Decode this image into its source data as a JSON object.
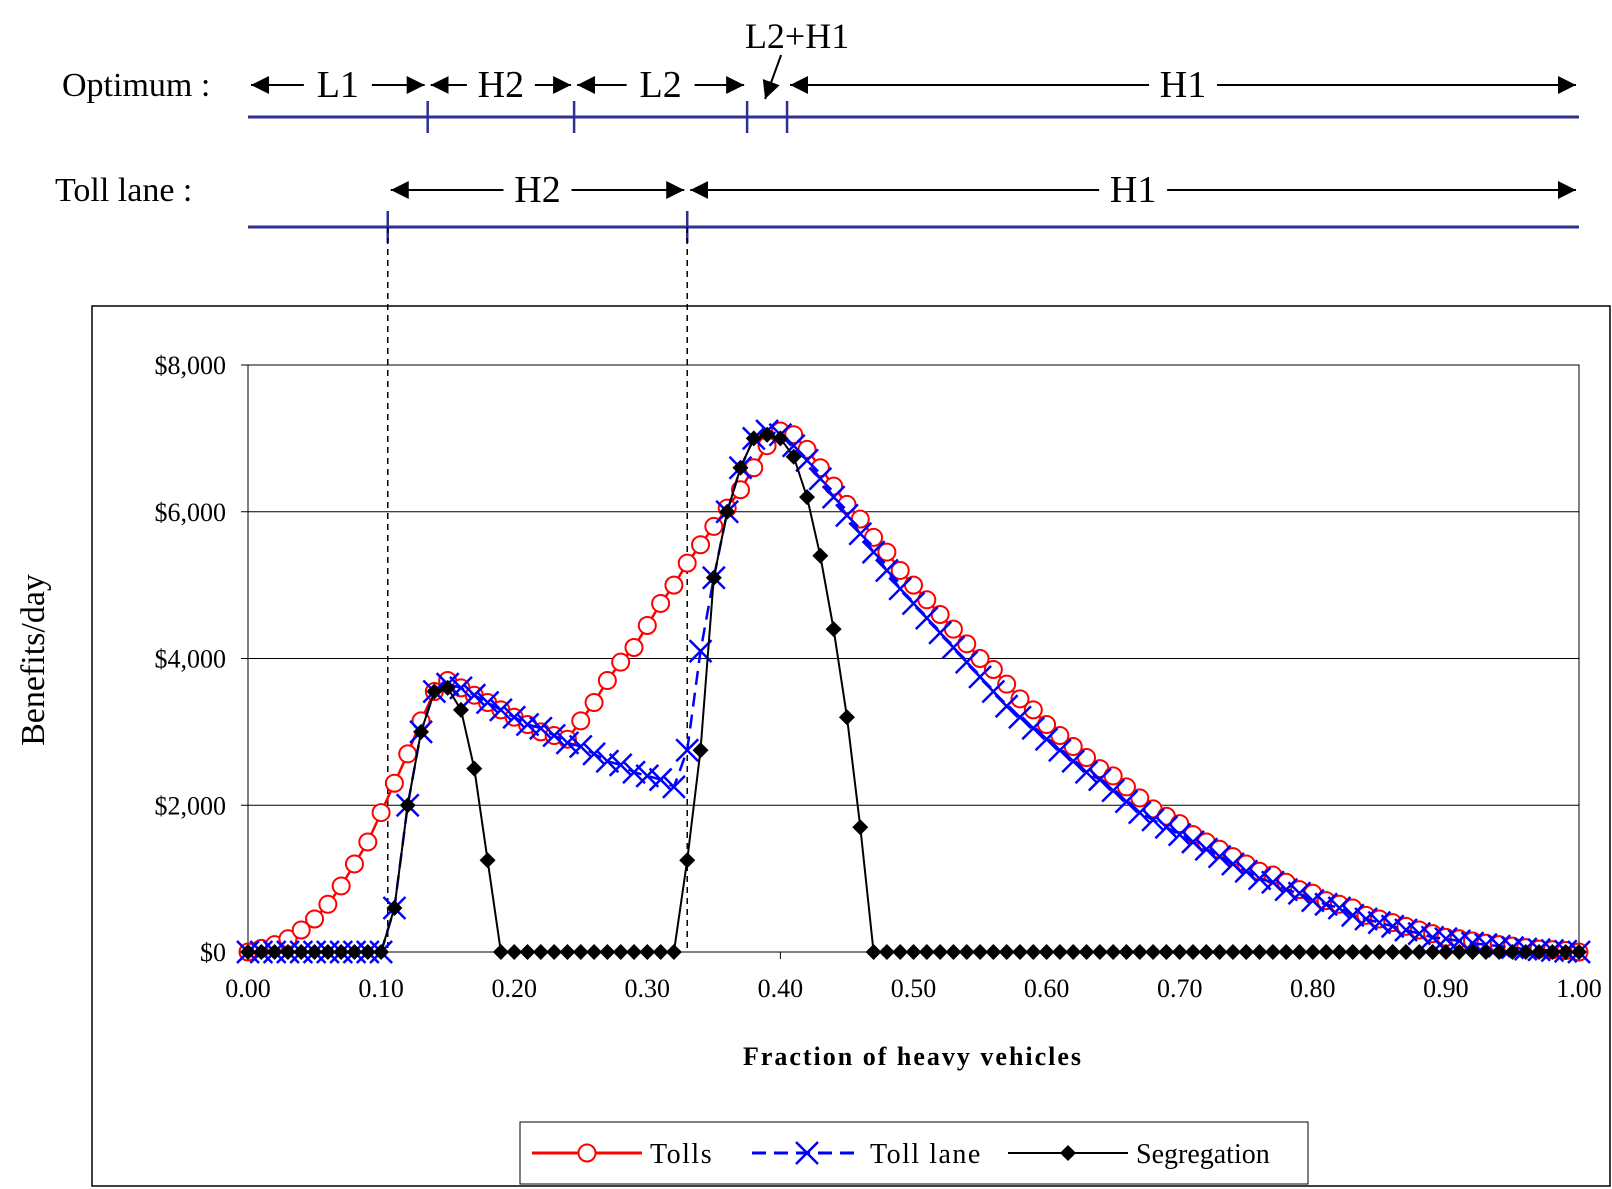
{
  "regime_bars": [
    {
      "label": "Optimum :",
      "regimes": [
        {
          "label": "L1",
          "from": 0.0,
          "to": 0.135
        },
        {
          "label": "H2",
          "from": 0.135,
          "to": 0.245
        },
        {
          "label": "L2",
          "from": 0.245,
          "to": 0.375
        },
        {
          "label": "L2+H1",
          "from": 0.375,
          "to": 0.405
        },
        {
          "label": "H1",
          "from": 0.405,
          "to": 1.0
        }
      ],
      "ticks": [
        0.135,
        0.245,
        0.375,
        0.405
      ]
    },
    {
      "label": "Toll lane :",
      "regimes": [
        {
          "label": "H2",
          "from": 0.105,
          "to": 0.33
        },
        {
          "label": "H1",
          "from": 0.33,
          "to": 1.0
        }
      ],
      "ticks": [
        0.105,
        0.33
      ]
    }
  ],
  "dashed_guides": [
    0.105,
    0.33
  ],
  "colors": {
    "tolls": "#ff0000",
    "toll_lane": "#0000ff",
    "segregation": "#000000",
    "regime_line": "#2e3192",
    "gridline": "#000000"
  },
  "chart_data": {
    "type": "line",
    "xlabel": "Fraction of heavy vehicles",
    "ylabel": "Benefits/day",
    "xlim": [
      0,
      1
    ],
    "ylim": [
      0,
      8000
    ],
    "x_ticks": [
      0.0,
      0.1,
      0.2,
      0.3,
      0.4,
      0.5,
      0.6,
      0.7,
      0.8,
      0.9,
      1.0
    ],
    "x_tick_labels": [
      "0.00",
      "0.10",
      "0.20",
      "0.30",
      "0.40",
      "0.50",
      "0.60",
      "0.70",
      "0.80",
      "0.90",
      "1.00"
    ],
    "y_ticks": [
      0,
      2000,
      4000,
      6000,
      8000
    ],
    "y_tick_labels": [
      "$0",
      "$2,000",
      "$4,000",
      "$6,000",
      "$8,000"
    ],
    "grid": "horizontal",
    "legend_position": "bottom-center",
    "x": [
      0.0,
      0.01,
      0.02,
      0.03,
      0.04,
      0.05,
      0.06,
      0.07,
      0.08,
      0.09,
      0.1,
      0.11,
      0.12,
      0.13,
      0.14,
      0.15,
      0.16,
      0.17,
      0.18,
      0.19,
      0.2,
      0.21,
      0.22,
      0.23,
      0.24,
      0.25,
      0.26,
      0.27,
      0.28,
      0.29,
      0.3,
      0.31,
      0.32,
      0.33,
      0.34,
      0.35,
      0.36,
      0.37,
      0.38,
      0.39,
      0.4,
      0.41,
      0.42,
      0.43,
      0.44,
      0.45,
      0.46,
      0.47,
      0.48,
      0.49,
      0.5,
      0.51,
      0.52,
      0.53,
      0.54,
      0.55,
      0.56,
      0.57,
      0.58,
      0.59,
      0.6,
      0.61,
      0.62,
      0.63,
      0.64,
      0.65,
      0.66,
      0.67,
      0.68,
      0.69,
      0.7,
      0.71,
      0.72,
      0.73,
      0.74,
      0.75,
      0.76,
      0.77,
      0.78,
      0.79,
      0.8,
      0.81,
      0.82,
      0.83,
      0.84,
      0.85,
      0.86,
      0.87,
      0.88,
      0.89,
      0.9,
      0.91,
      0.92,
      0.93,
      0.94,
      0.95,
      0.96,
      0.97,
      0.98,
      0.99,
      1.0
    ],
    "series": [
      {
        "name": "Tolls",
        "style": "solid-circle",
        "values": [
          0,
          50,
          100,
          180,
          300,
          450,
          650,
          900,
          1200,
          1500,
          1900,
          2300,
          2700,
          3150,
          3550,
          3700,
          3600,
          3500,
          3400,
          3300,
          3200,
          3100,
          3000,
          2950,
          2900,
          3150,
          3400,
          3700,
          3950,
          4150,
          4450,
          4750,
          5000,
          5300,
          5550,
          5800,
          6050,
          6300,
          6600,
          6900,
          7100,
          7050,
          6850,
          6600,
          6350,
          6100,
          5900,
          5650,
          5450,
          5200,
          5000,
          4800,
          4600,
          4400,
          4200,
          4000,
          3850,
          3650,
          3450,
          3300,
          3100,
          2950,
          2800,
          2650,
          2500,
          2400,
          2250,
          2100,
          1950,
          1850,
          1750,
          1600,
          1500,
          1400,
          1300,
          1200,
          1100,
          1050,
          950,
          850,
          800,
          700,
          650,
          600,
          500,
          450,
          400,
          350,
          300,
          250,
          200,
          180,
          150,
          120,
          100,
          80,
          60,
          40,
          30,
          20,
          0
        ]
      },
      {
        "name": "Toll lane",
        "style": "dashed-x",
        "values": [
          0,
          0,
          0,
          0,
          0,
          0,
          0,
          0,
          0,
          0,
          0,
          600,
          2000,
          3000,
          3550,
          3650,
          3600,
          3500,
          3400,
          3300,
          3200,
          3100,
          3050,
          2950,
          2850,
          2800,
          2700,
          2600,
          2550,
          2450,
          2400,
          2350,
          2250,
          2750,
          4100,
          5100,
          6000,
          6600,
          7000,
          7100,
          7050,
          6900,
          6700,
          6450,
          6200,
          5950,
          5700,
          5450,
          5200,
          4950,
          4750,
          4550,
          4350,
          4150,
          3950,
          3750,
          3550,
          3350,
          3200,
          3050,
          2900,
          2750,
          2600,
          2450,
          2350,
          2200,
          2050,
          1900,
          1800,
          1700,
          1600,
          1500,
          1400,
          1300,
          1200,
          1100,
          1000,
          950,
          850,
          800,
          700,
          650,
          600,
          500,
          450,
          400,
          350,
          300,
          250,
          200,
          180,
          150,
          120,
          100,
          80,
          60,
          40,
          30,
          20,
          10,
          0
        ]
      },
      {
        "name": "Segregation",
        "style": "solid-diamond",
        "values": [
          0,
          0,
          0,
          0,
          0,
          0,
          0,
          0,
          0,
          0,
          0,
          600,
          2000,
          3000,
          3550,
          3600,
          3300,
          2500,
          1250,
          0,
          0,
          0,
          0,
          0,
          0,
          0,
          0,
          0,
          0,
          0,
          0,
          0,
          0,
          1250,
          2750,
          5100,
          6000,
          6600,
          7000,
          7050,
          7000,
          6750,
          6200,
          5400,
          4400,
          3200,
          1700,
          0,
          0,
          0,
          0,
          0,
          0,
          0,
          0,
          0,
          0,
          0,
          0,
          0,
          0,
          0,
          0,
          0,
          0,
          0,
          0,
          0,
          0,
          0,
          0,
          0,
          0,
          0,
          0,
          0,
          0,
          0,
          0,
          0,
          0,
          0,
          0,
          0,
          0,
          0,
          0,
          0,
          0,
          0,
          0,
          0,
          0,
          0,
          0,
          0,
          0,
          0,
          0,
          0,
          0
        ]
      }
    ]
  }
}
